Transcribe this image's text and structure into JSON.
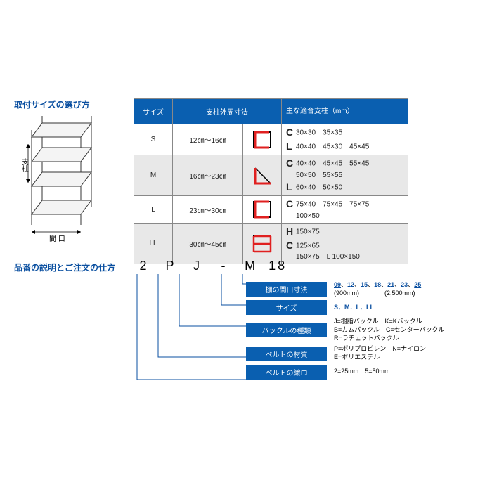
{
  "section1": {
    "title": "取付サイズの選び方",
    "shelf_labels": {
      "post": "支柱",
      "opening": "間 口"
    },
    "table": {
      "headers": [
        "サイズ",
        "支柱外周寸法",
        "主な適合支柱（mm）"
      ],
      "header_bg": "#0a5fb0",
      "header_color": "#ffffff",
      "alt_bg": "#e8e8e8",
      "rows": [
        {
          "size": "S",
          "range": "12㎝～16㎝",
          "shape_type": "C",
          "posts": [
            {
              "g": "C",
              "dims": "30×30　35×35"
            },
            {
              "g": "L",
              "dims": "40×40　45×30　45×45"
            }
          ]
        },
        {
          "size": "M",
          "range": "16㎝～23㎝",
          "shape_type": "L",
          "posts": [
            {
              "g": "C",
              "dims": "40×40　45×45　55×45"
            },
            {
              "g": "",
              "dims": "50×50　55×55"
            },
            {
              "g": "L",
              "dims": "60×40　50×50"
            }
          ]
        },
        {
          "size": "L",
          "range": "23㎝～30㎝",
          "shape_type": "C",
          "posts": [
            {
              "g": "C",
              "dims": "75×40　75×45　75×75"
            },
            {
              "g": "",
              "dims": "100×50"
            }
          ]
        },
        {
          "size": "LL",
          "range": "30㎝～45㎝",
          "shape_type": "H",
          "posts": [
            {
              "g": "H",
              "dims": "150×75"
            },
            {
              "g": "C",
              "dims": "125×65"
            },
            {
              "g": "",
              "dims": "150×75　L 100×150"
            }
          ]
        }
      ]
    }
  },
  "section2": {
    "title": "品番の説明とご注文の仕方",
    "code": [
      "2",
      "P",
      "J",
      "-",
      "M",
      "18"
    ],
    "legend": [
      {
        "label": "棚の間口寸法",
        "desc_html": "<span class='blue u'>09</span>、<span class='blue'>12</span>、<span class='blue'>15</span>、<span class='blue'>18</span>、<span class='blue'>21</span>、<span class='blue'>23</span>、<span class='blue u'>25</span><br>(900mm)　　　　(2,500mm)"
      },
      {
        "label": "サイズ",
        "desc_html": "<span class='blue'>S．M．L．LL</span>"
      },
      {
        "label": "バックルの種類",
        "desc_html": "J=樹脂バックル　K=Kバックル<br>B=カムバックル　C=センターバックル<br>R=ラチェットバックル"
      },
      {
        "label": "ベルトの材質",
        "desc_html": "P=ポリプロピレン　N=ナイロン<br>E=ポリエステル"
      },
      {
        "label": "ベルトの織巾",
        "desc_html": "2=25mm　5=50mm"
      }
    ]
  },
  "colors": {
    "brand_blue": "#0a4fa0",
    "header_blue": "#0a5fb0",
    "red": "#e02020",
    "grey": "#888888"
  }
}
